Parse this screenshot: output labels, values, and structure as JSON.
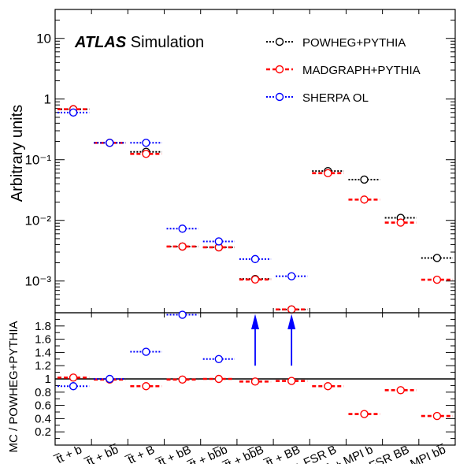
{
  "chart_data": [
    {
      "type": "scatter",
      "panel": "main",
      "ylabel": "Arbitrary units",
      "yscale": "log",
      "ylim": [
        0.0003,
        30
      ],
      "yticks": [
        {
          "value": 10,
          "label": "10"
        },
        {
          "value": 1,
          "label": "1"
        },
        {
          "value": 0.1,
          "label": "10⁻¹"
        },
        {
          "value": 0.01,
          "label": "10⁻²"
        },
        {
          "value": 0.001,
          "label": "10⁻³"
        }
      ],
      "categories": [
        "t̅t + b",
        "t̅t + bb̅",
        "t̅t + B",
        "t̅t + bB",
        "t̅t + bb̅b",
        "t̅t + bb̅B",
        "t̅t + BB",
        "t̅t + FSR B",
        "t̅t + MPI b",
        "t̅t + FSR BB",
        "t̅t + MPI bb̅"
      ],
      "series": [
        {
          "name": "POWHEG+PYTHIA",
          "color": "#000000",
          "style": "dotted",
          "values": [
            0.68,
            0.19,
            0.135,
            0.0037,
            0.0036,
            0.00108,
            0.00034,
            0.065,
            0.047,
            0.011,
            0.0024
          ]
        },
        {
          "name": "MADGRAPH+PYTHIA",
          "color": "#ff0000",
          "style": "dashed",
          "values": [
            0.68,
            0.19,
            0.125,
            0.0037,
            0.0036,
            0.00106,
            0.00034,
            0.06,
            0.022,
            0.0092,
            0.00105
          ]
        },
        {
          "name": "SHERPA OL",
          "color": "#0000ff",
          "style": "dotted",
          "values": [
            0.6,
            0.19,
            0.19,
            0.0073,
            0.0045,
            0.0023,
            0.0012,
            null,
            null,
            null,
            null
          ]
        }
      ],
      "annotations": {
        "experiment": "ATLAS",
        "label": "Simulation"
      },
      "legend_position": "top-right"
    },
    {
      "type": "scatter",
      "panel": "ratio",
      "ylabel": "MC / POWHEG+PYTHIA",
      "ylim": [
        0,
        2
      ],
      "yticks": [
        "0.2",
        "0.4",
        "0.6",
        "0.8",
        "1",
        "1.2",
        "1.4",
        "1.6",
        "1.8"
      ],
      "reference_line": 1,
      "series": [
        {
          "name": "MADGRAPH+PYTHIA",
          "color": "#ff0000",
          "style": "dashed",
          "values": [
            1.02,
            0.99,
            0.89,
            0.99,
            1.0,
            0.96,
            0.97,
            0.89,
            0.47,
            0.83,
            0.44
          ]
        },
        {
          "name": "SHERPA OL",
          "color": "#0000ff",
          "style": "dotted",
          "values": [
            0.89,
            1.0,
            1.41,
            1.97,
            1.3,
            null,
            null,
            null,
            null,
            null,
            null
          ]
        }
      ],
      "off_scale_arrows_categories": [
        5,
        6
      ],
      "arrow_color": "#0000ff"
    }
  ]
}
